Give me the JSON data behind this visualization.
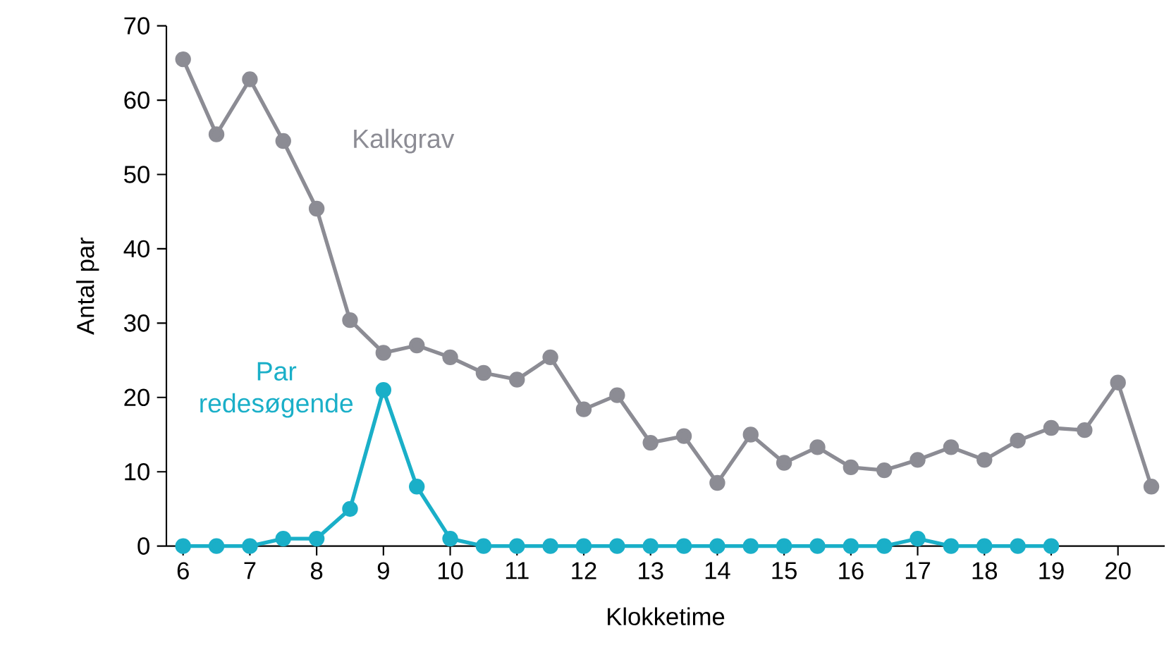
{
  "chart_data": {
    "type": "line",
    "xlabel": "Klokketime",
    "ylabel": "Antal par",
    "x": [
      6,
      6.5,
      7,
      7.5,
      8,
      8.5,
      9,
      9.5,
      10,
      10.5,
      11,
      11.5,
      12,
      12.5,
      13,
      13.5,
      14,
      14.5,
      15,
      15.5,
      16,
      16.5,
      17,
      17.5,
      18,
      18.5,
      19,
      19.5,
      20,
      20.5
    ],
    "series": [
      {
        "name": "Kalkgrav",
        "color": "#8c8c94",
        "values": [
          65.5,
          55.4,
          62.8,
          54.5,
          45.4,
          30.4,
          26,
          27,
          25.4,
          23.3,
          22.4,
          25.4,
          18.4,
          20.3,
          13.9,
          14.8,
          8.5,
          15,
          11.2,
          13.3,
          10.6,
          10.2,
          11.6,
          13.3,
          11.6,
          14.2,
          15.9,
          15.6,
          22,
          8
        ]
      },
      {
        "name": "Par redesøgende",
        "color": "#1aafc8",
        "values": [
          0,
          0,
          0,
          1,
          1,
          5,
          21,
          8,
          1,
          0,
          0,
          0,
          0,
          0,
          0,
          0,
          0,
          0,
          0,
          0,
          0,
          0,
          1,
          0,
          0,
          0,
          0,
          null,
          null,
          null
        ]
      }
    ],
    "xlim": [
      5.75,
      20.7
    ],
    "ylim": [
      0,
      70
    ],
    "xticks": [
      6,
      7,
      8,
      9,
      10,
      11,
      12,
      13,
      14,
      15,
      16,
      17,
      18,
      19,
      20
    ],
    "yticks": [
      0,
      10,
      20,
      30,
      40,
      50,
      60,
      70
    ],
    "grid": false,
    "marker": "circle",
    "line_style": "solid"
  }
}
